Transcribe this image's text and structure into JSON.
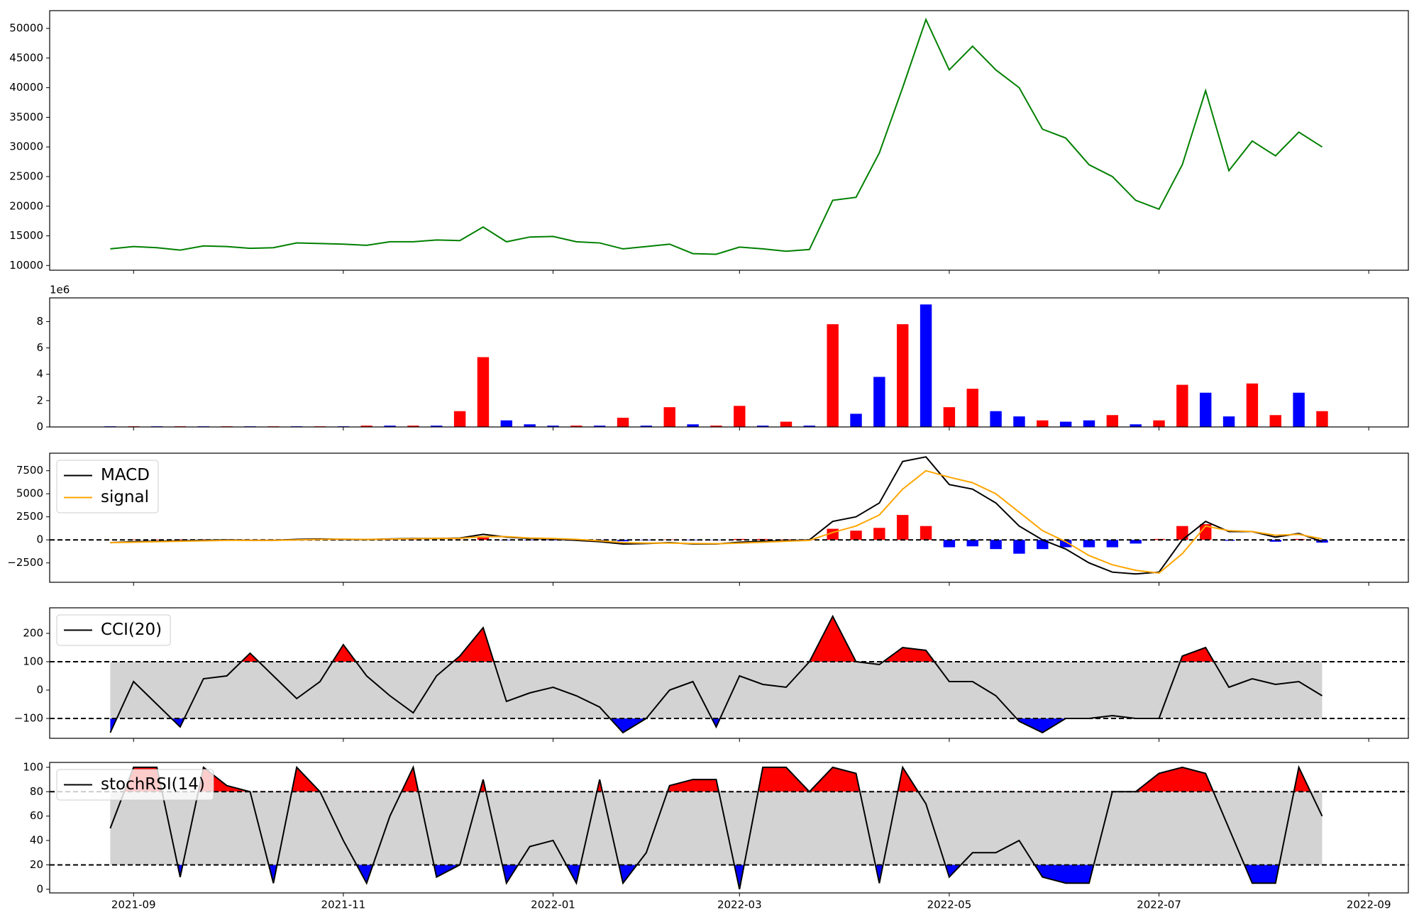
{
  "chart_data": [
    {
      "type": "line",
      "ylim": [
        9200,
        53000
      ],
      "yticks": [
        10000,
        15000,
        20000,
        25000,
        30000,
        35000,
        40000,
        45000,
        50000
      ],
      "series": [
        {
          "color": "green",
          "values": [
            null,
            null,
            null,
            12800,
            13200,
            13000,
            12600,
            13300,
            13200,
            12900,
            13000,
            13800,
            13700,
            13600,
            13400,
            14000,
            14000,
            14300,
            14200,
            16500,
            14000,
            14800,
            14900,
            14000,
            13800,
            12800,
            13200,
            13600,
            12000,
            11900,
            13100,
            12800,
            12400,
            12700,
            21000,
            21500,
            29000,
            40000,
            51500,
            43000,
            47000,
            43000,
            40000,
            33000,
            31500,
            27000,
            25000,
            21000,
            19500,
            27000,
            39500,
            26000,
            31000,
            28500,
            32500,
            30000,
            null,
            null
          ]
        }
      ]
    },
    {
      "type": "bar",
      "offset_label": "1e6",
      "ylim": [
        0,
        9.8
      ],
      "yticks": [
        0,
        2,
        4,
        6,
        8
      ],
      "values": [
        null,
        null,
        null,
        0.05,
        0.05,
        0.05,
        0.05,
        0.05,
        0.05,
        0.05,
        0.05,
        0.05,
        0.05,
        0.05,
        0.1,
        0.1,
        0.1,
        0.1,
        1.2,
        5.3,
        0.5,
        0.2,
        0.1,
        0.1,
        0.1,
        0.7,
        0.1,
        1.5,
        0.2,
        0.1,
        1.6,
        0.1,
        0.4,
        0.1,
        7.8,
        1.0,
        3.8,
        7.8,
        9.3,
        1.5,
        2.9,
        1.2,
        0.8,
        0.5,
        0.4,
        0.5,
        0.9,
        0.2,
        0.5,
        3.2,
        2.6,
        0.8,
        3.3,
        0.9,
        2.6,
        1.2,
        null,
        null
      ],
      "colors": [
        null,
        null,
        null,
        "blue",
        "red",
        "blue",
        "red",
        "blue",
        "red",
        "blue",
        "red",
        "blue",
        "red",
        "blue",
        "red",
        "blue",
        "red",
        "blue",
        "red",
        "red",
        "blue",
        "blue",
        "blue",
        "red",
        "blue",
        "red",
        "blue",
        "red",
        "blue",
        "red",
        "red",
        "blue",
        "red",
        "blue",
        "red",
        "blue",
        "blue",
        "red",
        "blue",
        "red",
        "red",
        "blue",
        "blue",
        "red",
        "blue",
        "blue",
        "red",
        "blue",
        "red",
        "red",
        "blue",
        "blue",
        "red",
        "red",
        "blue",
        "red",
        null,
        null
      ]
    },
    {
      "type": "line",
      "ylim": [
        -4600,
        9400
      ],
      "yticks": [
        {
          "value": -2500,
          "label": "−2500"
        },
        0,
        2500,
        5000,
        7500
      ],
      "hlines": [
        0
      ],
      "legend": "upper left",
      "series": [
        {
          "name": "MACD",
          "color": "black",
          "values": [
            null,
            null,
            null,
            -300,
            -200,
            -150,
            -100,
            -50,
            0,
            -50,
            -50,
            50,
            100,
            50,
            30,
            100,
            150,
            150,
            200,
            600,
            300,
            150,
            100,
            -50,
            -200,
            -450,
            -400,
            -300,
            -450,
            -450,
            -250,
            -150,
            -100,
            0,
            2000,
            2500,
            4000,
            8500,
            9000,
            6000,
            5500,
            4000,
            1500,
            0,
            -1000,
            -2500,
            -3500,
            -3700,
            -3500,
            0,
            2000,
            900,
            900,
            300,
            700,
            -200,
            null,
            null
          ]
        },
        {
          "name": "signal",
          "color": "orange",
          "values": [
            null,
            null,
            null,
            -300,
            -250,
            -200,
            -150,
            -100,
            -50,
            -50,
            -50,
            0,
            50,
            80,
            50,
            80,
            120,
            150,
            170,
            350,
            350,
            200,
            150,
            50,
            -100,
            -300,
            -350,
            -350,
            -400,
            -420,
            -350,
            -250,
            -150,
            -50,
            800,
            1500,
            2700,
            5500,
            7500,
            6800,
            6200,
            5000,
            3000,
            1000,
            -200,
            -1700,
            -2700,
            -3300,
            -3600,
            -1500,
            1500,
            1000,
            900,
            500,
            600,
            100,
            null,
            null
          ]
        }
      ],
      "histogram": {
        "pos_color": "red",
        "neg_color": "blue",
        "values": [
          null,
          null,
          null,
          0,
          50,
          50,
          50,
          50,
          50,
          0,
          0,
          50,
          50,
          -30,
          -20,
          20,
          30,
          0,
          30,
          250,
          -50,
          -50,
          -50,
          -100,
          -100,
          -150,
          -50,
          50,
          -50,
          -30,
          100,
          100,
          50,
          50,
          1200,
          1000,
          1300,
          2700,
          1500,
          -800,
          -700,
          -1000,
          -1500,
          -1000,
          -800,
          -800,
          -800,
          -400,
          100,
          1500,
          1700,
          -100,
          0,
          -200,
          100,
          -300,
          null,
          null
        ]
      }
    },
    {
      "type": "line",
      "ylim": [
        -170,
        290
      ],
      "yticks": [
        {
          "value": -100,
          "label": "−100"
        },
        0,
        100,
        200
      ],
      "hlines": [
        -100,
        100
      ],
      "legend": "upper left",
      "band_fill": "lightgray",
      "above_color": "red",
      "below_color": "blue",
      "series": [
        {
          "name": "CCI(20)",
          "color": "black",
          "values": [
            null,
            null,
            null,
            -150,
            30,
            -50,
            -130,
            40,
            50,
            130,
            50,
            -30,
            30,
            160,
            50,
            -20,
            -80,
            50,
            120,
            220,
            -40,
            -10,
            10,
            -20,
            -60,
            -150,
            -100,
            0,
            30,
            -130,
            50,
            20,
            10,
            100,
            260,
            100,
            90,
            150,
            140,
            30,
            30,
            -20,
            -110,
            -150,
            -100,
            -100,
            -90,
            -100,
            -100,
            120,
            150,
            10,
            40,
            20,
            30,
            -20,
            null,
            null
          ]
        }
      ]
    },
    {
      "type": "line",
      "ylim": [
        -3,
        104
      ],
      "yticks": [
        0,
        20,
        40,
        60,
        80,
        100
      ],
      "hlines": [
        20,
        80
      ],
      "legend": "upper left",
      "band_fill": "lightgray",
      "above_color": "red",
      "below_color": "blue",
      "categories": [
        null,
        null,
        null,
        null,
        "2021-09",
        null,
        null,
        null,
        null,
        null,
        null,
        null,
        null,
        "2021-11",
        null,
        null,
        null,
        null,
        null,
        null,
        null,
        null,
        "2022-01",
        null,
        null,
        null,
        null,
        null,
        null,
        null,
        "2022-03",
        null,
        null,
        null,
        null,
        null,
        null,
        null,
        null,
        "2022-05",
        null,
        null,
        null,
        null,
        null,
        null,
        null,
        null,
        "2022-07",
        null,
        null,
        null,
        null,
        null,
        null,
        null,
        null,
        "2022-09"
      ],
      "series": [
        {
          "name": "stochRSI(14)",
          "color": "black",
          "values": [
            null,
            null,
            null,
            50,
            100,
            100,
            10,
            100,
            85,
            80,
            5,
            100,
            80,
            40,
            5,
            60,
            100,
            10,
            20,
            90,
            5,
            35,
            40,
            5,
            90,
            5,
            30,
            85,
            90,
            90,
            0,
            100,
            100,
            80,
            100,
            95,
            5,
            100,
            70,
            10,
            30,
            30,
            40,
            10,
            5,
            5,
            80,
            80,
            95,
            100,
            95,
            50,
            5,
            5,
            100,
            60,
            null,
            null
          ]
        }
      ]
    }
  ]
}
